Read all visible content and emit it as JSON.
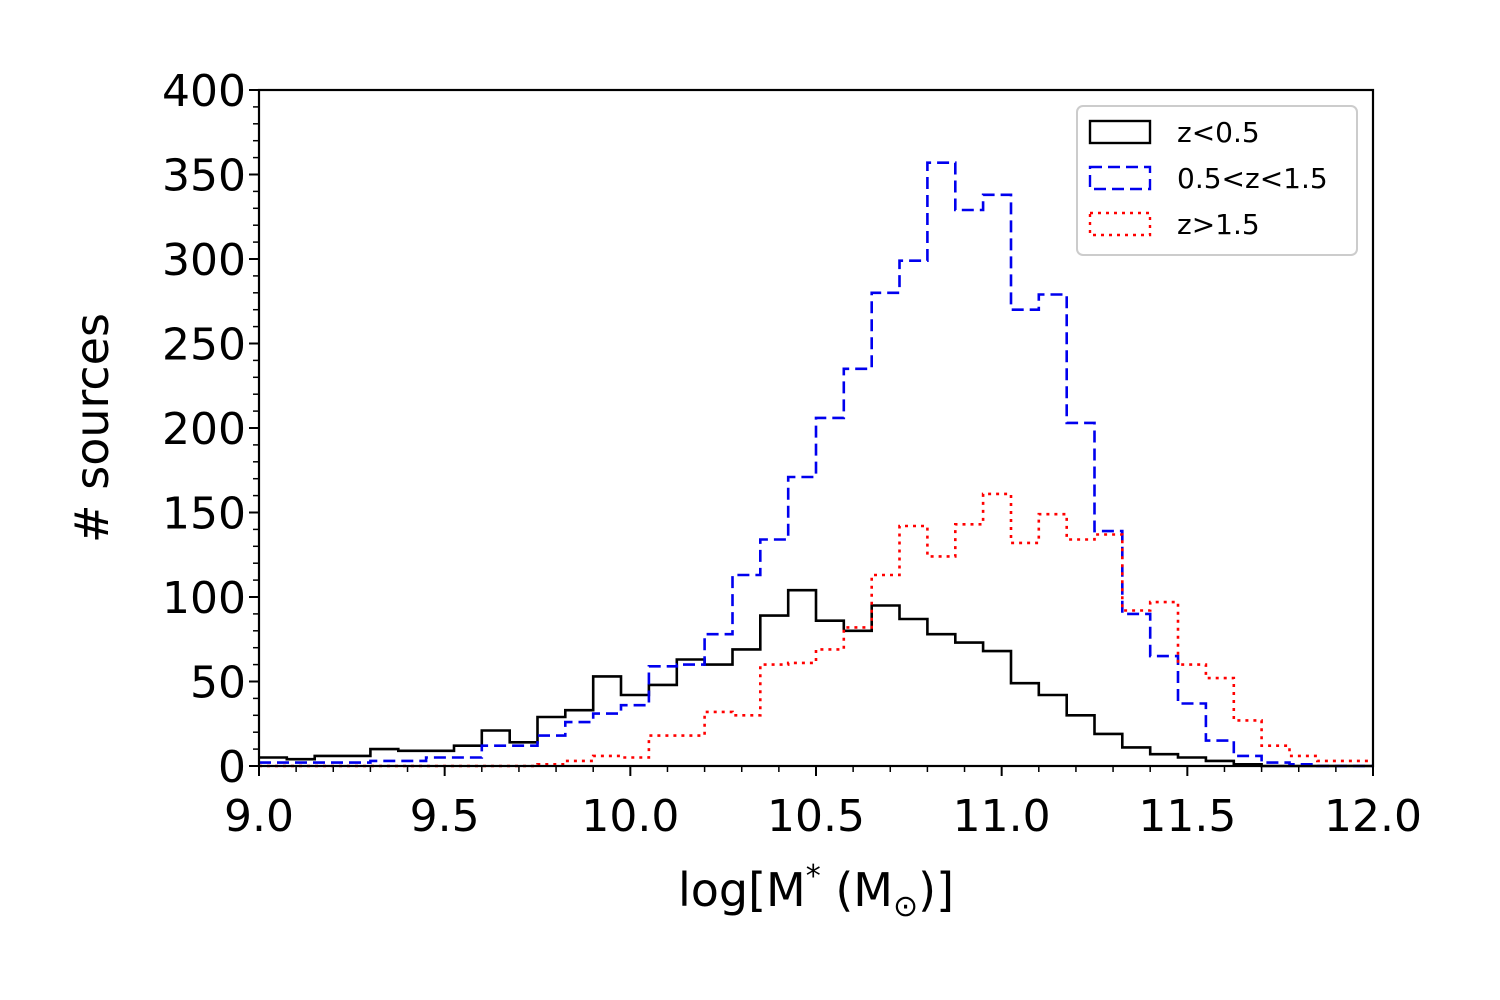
{
  "chart_data": {
    "type": "histogram",
    "title": "",
    "xlabel": "log[M* (M⊙)]",
    "xlabel_parts": {
      "pre": "log[M",
      "sup": "*",
      "mid": " (M",
      "sub": "⊙",
      "post": ")]"
    },
    "ylabel": "# sources",
    "xlim": [
      9.0,
      12.0
    ],
    "ylim": [
      0,
      400
    ],
    "xticks": [
      9.0,
      9.5,
      10.0,
      10.5,
      11.0,
      11.5,
      12.0
    ],
    "xtick_labels": [
      "9.0",
      "9.5",
      "10.0",
      "10.5",
      "11.0",
      "11.5",
      "12.0"
    ],
    "yticks": [
      0,
      50,
      100,
      150,
      200,
      250,
      300,
      350,
      400
    ],
    "ytick_labels": [
      "0",
      "50",
      "100",
      "150",
      "200",
      "250",
      "300",
      "350",
      "400"
    ],
    "legend_position": "top-right",
    "bin_start": 9.0,
    "bin_width": 0.075,
    "series": [
      {
        "name": "z<0.5",
        "color": "#000000",
        "style": "solid",
        "values": [
          5,
          4,
          6,
          6,
          10,
          9,
          9,
          12,
          21,
          14,
          29,
          33,
          53,
          42,
          48,
          63,
          60,
          69,
          89,
          104,
          86,
          80,
          95,
          87,
          78,
          73,
          68,
          49,
          42,
          30,
          19,
          11,
          7,
          5,
          3,
          1,
          0,
          0,
          0,
          0
        ]
      },
      {
        "name": "0.5<z<1.5",
        "color": "#0000ee",
        "style": "dashed",
        "values": [
          2,
          2,
          2,
          2,
          3,
          3,
          5,
          5,
          12,
          12,
          18,
          26,
          31,
          36,
          59,
          60,
          78,
          113,
          134,
          171,
          206,
          235,
          280,
          299,
          357,
          329,
          338,
          270,
          279,
          203,
          139,
          90,
          65,
          37,
          15,
          6,
          2,
          1,
          0,
          0
        ]
      },
      {
        "name": "z>1.5",
        "color": "#ff0000",
        "style": "dotted",
        "values": [
          0,
          0,
          0,
          0,
          0,
          0,
          0,
          0,
          0,
          0,
          1,
          3,
          6,
          5,
          18,
          18,
          32,
          30,
          60,
          61,
          69,
          82,
          113,
          142,
          124,
          143,
          161,
          132,
          149,
          134,
          137,
          92,
          97,
          60,
          52,
          27,
          12,
          6,
          3,
          3
        ]
      }
    ]
  }
}
